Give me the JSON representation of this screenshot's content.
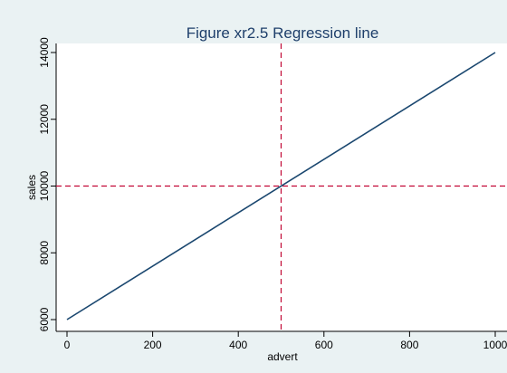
{
  "chart_data": {
    "type": "line",
    "title": "Figure xr2.5 Regression line",
    "xlabel": "advert",
    "ylabel": "sales",
    "xlim": [
      0,
      1000
    ],
    "ylim": [
      6000,
      14000
    ],
    "x_ticks": [
      0,
      200,
      400,
      600,
      800,
      1000
    ],
    "y_ticks": [
      6000,
      8000,
      10000,
      12000,
      14000
    ],
    "x_tick_labels": [
      "0",
      "200",
      "400",
      "600",
      "800",
      "1000"
    ],
    "y_tick_labels": [
      "6000",
      "8000",
      "10000",
      "12000",
      "14000"
    ],
    "grid": false,
    "series": [
      {
        "x": [
          0,
          1000
        ],
        "y": [
          6000,
          14000
        ],
        "color": "#1a476f"
      }
    ],
    "reference_lines": {
      "vertical_x": 500,
      "horizontal_y": 10000,
      "color": "#c10534",
      "style": "dashed"
    },
    "colors": {
      "background": "#eaf2f3",
      "plot_area": "#ffffff",
      "title": "#1e3f6b",
      "axis": "#000000"
    }
  }
}
